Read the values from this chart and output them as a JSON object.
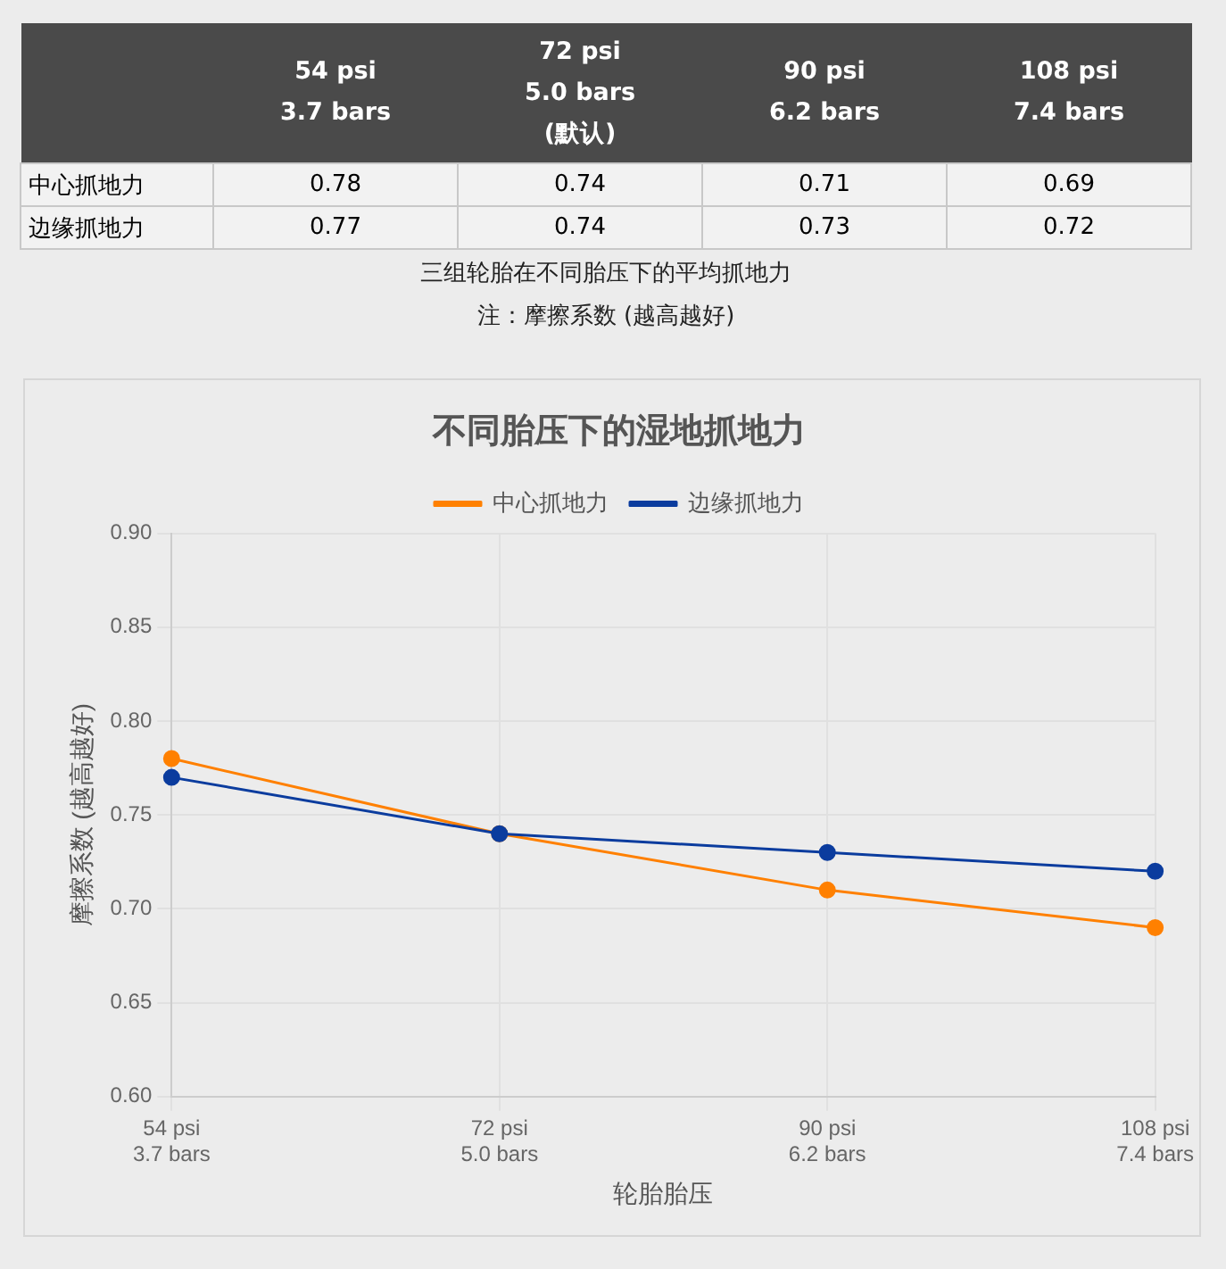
{
  "chart_data": [
    {
      "type": "other",
      "categories": [
        "54 psi\n3.7 bars",
        "72 psi\n5.0 bars\n(默认)",
        "90 psi\n6.2 bars",
        "108 psi\n7.4 bars"
      ],
      "series": [
        {
          "name": "中心抓地力",
          "values": [
            0.78,
            0.74,
            0.71,
            0.69
          ]
        },
        {
          "name": "边缘抓地力",
          "values": [
            0.77,
            0.74,
            0.73,
            0.72
          ]
        }
      ],
      "data_labels": true,
      "annotations": [
        "三组轮胎在不同胎压下的平均抓地力",
        "注：摩擦系数 (越高越好)"
      ]
    },
    {
      "type": "line",
      "title": "不同胎压下的湿地抓地力",
      "xlabel": "轮胎胎压",
      "ylabel": "摩擦系数 (越高越好)",
      "categories": [
        "54 psi\n3.7 bars",
        "72 psi\n5.0 bars",
        "90 psi\n6.2 bars",
        "108 psi\n7.4 bars"
      ],
      "series": [
        {
          "name": "中心抓地力",
          "color": "#ff8000",
          "values": [
            0.78,
            0.74,
            0.71,
            0.69
          ]
        },
        {
          "name": "边缘抓地力",
          "color": "#0b3c9e",
          "values": [
            0.77,
            0.74,
            0.73,
            0.72
          ]
        }
      ],
      "ylim": [
        0.6,
        0.9
      ],
      "yticks": [
        {
          "value": 0.6,
          "label": "0.60"
        },
        {
          "value": 0.65,
          "label": "0.65"
        },
        {
          "value": 0.7,
          "label": "0.70"
        },
        {
          "value": 0.75,
          "label": "0.75"
        },
        {
          "value": 0.8,
          "label": "0.80"
        },
        {
          "value": 0.85,
          "label": "0.85"
        },
        {
          "value": 0.9,
          "label": "0.90"
        }
      ],
      "grid": true,
      "legend": "top",
      "marker": "circle",
      "line_style": "solid"
    }
  ]
}
